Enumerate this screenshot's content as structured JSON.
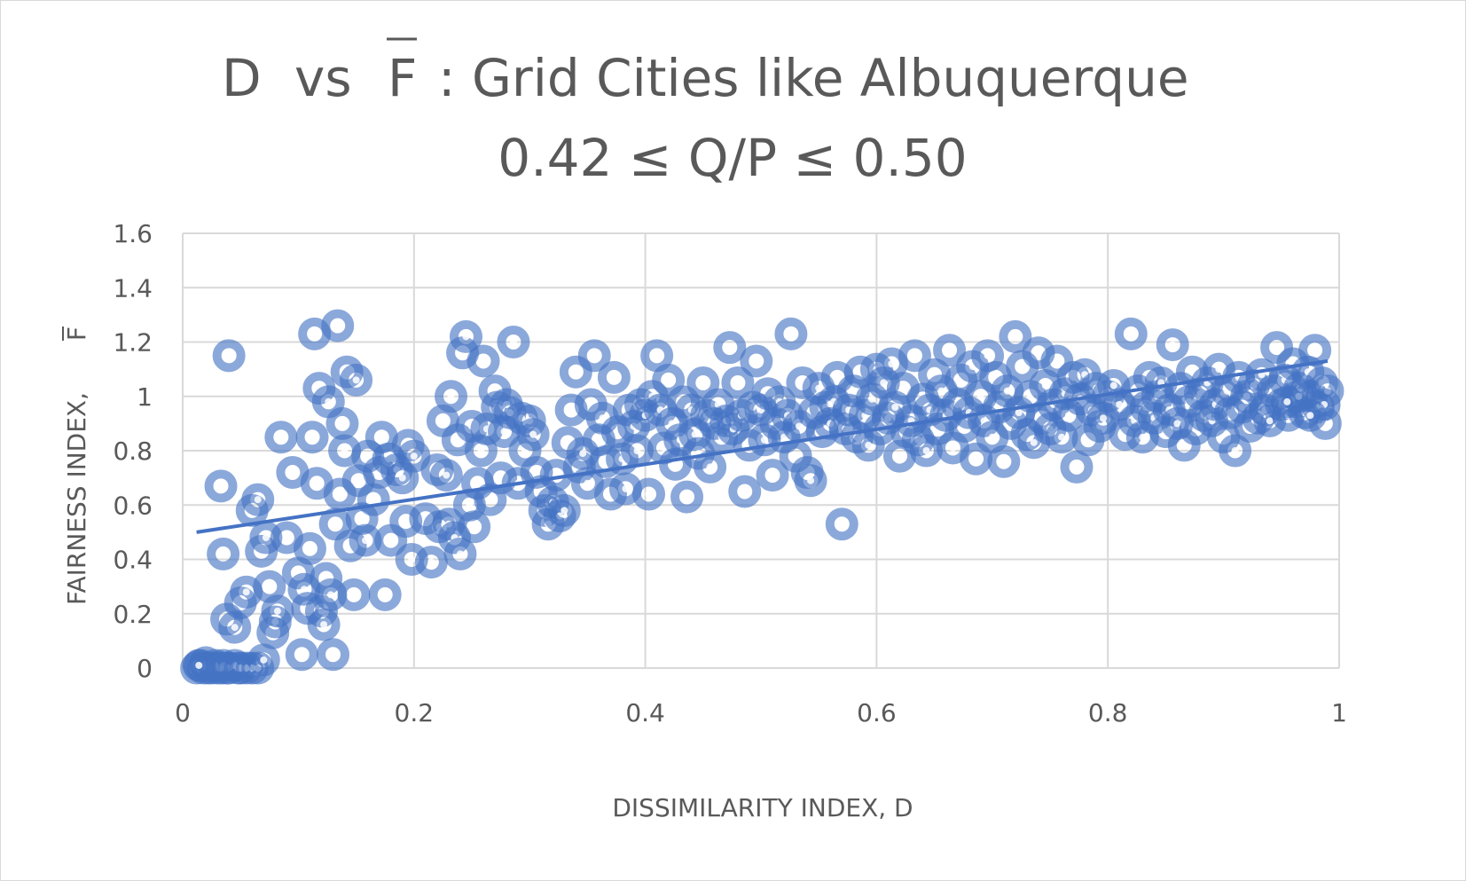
{
  "chart_data": {
    "type": "scatter",
    "title_line1_part1": "D",
    "title_line1_part2": "vs",
    "title_line1_part3": "F",
    "title_line1_part4": ": Grid Cities like Albuquerque",
    "title_line2": "0.42 ≤ Q/P ≤ 0.50",
    "xlabel": "DISSIMILARITY INDEX, D",
    "ylabel_prefix": "FAIRNESS INDEX,",
    "ylabel_symbol": "F",
    "xlim": [
      0,
      1
    ],
    "ylim": [
      0,
      1.6
    ],
    "x_ticks": [
      "0",
      "0.2",
      "0.4",
      "0.6",
      "0.8",
      "1"
    ],
    "x_tick_values": [
      0,
      0.2,
      0.4,
      0.6,
      0.8,
      1
    ],
    "y_ticks": [
      "0",
      "0.2",
      "0.4",
      "0.6",
      "0.8",
      "1",
      "1.2",
      "1.4",
      "1.6"
    ],
    "y_tick_values": [
      0,
      0.2,
      0.4,
      0.6,
      0.8,
      1.0,
      1.2,
      1.4,
      1.6
    ],
    "grid": true,
    "trendline": {
      "type": "linear",
      "x": [
        0.012,
        0.99
      ],
      "y": [
        0.5,
        1.13
      ]
    },
    "marker_color": "#4472C4",
    "trend_color": "#4472C4",
    "points": [
      [
        0.012,
        0.0
      ],
      [
        0.015,
        0.01
      ],
      [
        0.018,
        0.0
      ],
      [
        0.02,
        0.02
      ],
      [
        0.022,
        0.0
      ],
      [
        0.025,
        0.0
      ],
      [
        0.028,
        0.01
      ],
      [
        0.03,
        0.0
      ],
      [
        0.033,
        0.0
      ],
      [
        0.035,
        0.01
      ],
      [
        0.038,
        0.0
      ],
      [
        0.04,
        0.0
      ],
      [
        0.045,
        0.01
      ],
      [
        0.048,
        0.0
      ],
      [
        0.05,
        0.0
      ],
      [
        0.055,
        0.0
      ],
      [
        0.06,
        0.0
      ],
      [
        0.065,
        0.0
      ],
      [
        0.07,
        0.03
      ],
      [
        0.014,
        0.01
      ],
      [
        0.04,
        1.15
      ],
      [
        0.033,
        0.67
      ],
      [
        0.035,
        0.42
      ],
      [
        0.038,
        0.18
      ],
      [
        0.045,
        0.15
      ],
      [
        0.05,
        0.24
      ],
      [
        0.055,
        0.28
      ],
      [
        0.06,
        0.58
      ],
      [
        0.065,
        0.62
      ],
      [
        0.068,
        0.43
      ],
      [
        0.072,
        0.48
      ],
      [
        0.075,
        0.3
      ],
      [
        0.078,
        0.13
      ],
      [
        0.08,
        0.17
      ],
      [
        0.082,
        0.21
      ],
      [
        0.085,
        0.85
      ],
      [
        0.09,
        0.48
      ],
      [
        0.095,
        0.72
      ],
      [
        0.1,
        0.35
      ],
      [
        0.103,
        0.05
      ],
      [
        0.105,
        0.29
      ],
      [
        0.108,
        0.22
      ],
      [
        0.11,
        0.44
      ],
      [
        0.112,
        0.85
      ],
      [
        0.114,
        1.23
      ],
      [
        0.116,
        0.68
      ],
      [
        0.118,
        1.03
      ],
      [
        0.12,
        0.21
      ],
      [
        0.122,
        0.16
      ],
      [
        0.124,
        0.33
      ],
      [
        0.126,
        0.98
      ],
      [
        0.128,
        0.27
      ],
      [
        0.13,
        0.05
      ],
      [
        0.132,
        0.53
      ],
      [
        0.134,
        1.26
      ],
      [
        0.136,
        0.64
      ],
      [
        0.138,
        0.9
      ],
      [
        0.14,
        0.8
      ],
      [
        0.142,
        1.09
      ],
      [
        0.145,
        0.45
      ],
      [
        0.148,
        0.27
      ],
      [
        0.15,
        1.06
      ],
      [
        0.152,
        0.69
      ],
      [
        0.155,
        0.55
      ],
      [
        0.158,
        0.47
      ],
      [
        0.16,
        0.78
      ],
      [
        0.165,
        0.62
      ],
      [
        0.17,
        0.72
      ],
      [
        0.172,
        0.85
      ],
      [
        0.175,
        0.27
      ],
      [
        0.178,
        0.77
      ],
      [
        0.18,
        0.47
      ],
      [
        0.185,
        0.73
      ],
      [
        0.19,
        0.7
      ],
      [
        0.193,
        0.54
      ],
      [
        0.195,
        0.82
      ],
      [
        0.198,
        0.4
      ],
      [
        0.2,
        0.78
      ],
      [
        0.21,
        0.55
      ],
      [
        0.215,
        0.39
      ],
      [
        0.22,
        0.73
      ],
      [
        0.222,
        0.52
      ],
      [
        0.225,
        0.91
      ],
      [
        0.228,
        0.71
      ],
      [
        0.23,
        0.53
      ],
      [
        0.232,
        1.0
      ],
      [
        0.235,
        0.48
      ],
      [
        0.238,
        0.84
      ],
      [
        0.24,
        0.42
      ],
      [
        0.242,
        1.16
      ],
      [
        0.245,
        1.22
      ],
      [
        0.248,
        0.6
      ],
      [
        0.25,
        0.89
      ],
      [
        0.252,
        0.52
      ],
      [
        0.255,
        0.68
      ],
      [
        0.258,
        0.8
      ],
      [
        0.26,
        1.13
      ],
      [
        0.263,
        0.88
      ],
      [
        0.266,
        0.62
      ],
      [
        0.27,
        1.02
      ],
      [
        0.272,
        0.96
      ],
      [
        0.275,
        0.7
      ],
      [
        0.278,
        0.87
      ],
      [
        0.28,
        0.97
      ],
      [
        0.283,
        0.94
      ],
      [
        0.286,
        1.2
      ],
      [
        0.29,
        0.68
      ],
      [
        0.293,
        0.92
      ],
      [
        0.296,
        0.8
      ],
      [
        0.3,
        0.91
      ],
      [
        0.303,
        0.86
      ],
      [
        0.306,
        0.72
      ],
      [
        0.31,
        0.65
      ],
      [
        0.313,
        0.58
      ],
      [
        0.316,
        0.53
      ],
      [
        0.32,
        0.61
      ],
      [
        0.323,
        0.71
      ],
      [
        0.326,
        0.56
      ],
      [
        0.33,
        0.58
      ],
      [
        0.333,
        0.83
      ],
      [
        0.336,
        0.95
      ],
      [
        0.34,
        1.09
      ],
      [
        0.343,
        0.74
      ],
      [
        0.346,
        0.79
      ],
      [
        0.35,
        0.68
      ],
      [
        0.353,
        0.97
      ],
      [
        0.356,
        1.15
      ],
      [
        0.36,
        0.84
      ],
      [
        0.363,
        0.92
      ],
      [
        0.366,
        0.76
      ],
      [
        0.37,
        0.64
      ],
      [
        0.373,
        1.07
      ],
      [
        0.376,
        0.87
      ],
      [
        0.38,
        0.77
      ],
      [
        0.383,
        0.66
      ],
      [
        0.386,
        0.95
      ],
      [
        0.39,
        0.89
      ],
      [
        0.393,
        0.8
      ],
      [
        0.396,
        0.97
      ],
      [
        0.4,
        0.93
      ],
      [
        0.403,
        0.64
      ],
      [
        0.406,
        1.0
      ],
      [
        0.41,
        1.15
      ],
      [
        0.413,
        0.95
      ],
      [
        0.416,
        0.81
      ],
      [
        0.42,
        1.06
      ],
      [
        0.423,
        0.9
      ],
      [
        0.426,
        0.75
      ],
      [
        0.43,
        0.84
      ],
      [
        0.433,
        0.98
      ],
      [
        0.436,
        0.63
      ],
      [
        0.44,
        0.95
      ],
      [
        0.443,
        0.86
      ],
      [
        0.446,
        0.79
      ],
      [
        0.45,
        1.05
      ],
      [
        0.453,
        0.93
      ],
      [
        0.456,
        0.74
      ],
      [
        0.46,
        0.9
      ],
      [
        0.463,
        0.97
      ],
      [
        0.466,
        0.85
      ],
      [
        0.47,
        0.91
      ],
      [
        0.473,
        1.18
      ],
      [
        0.476,
        0.88
      ],
      [
        0.48,
        1.05
      ],
      [
        0.483,
        0.93
      ],
      [
        0.486,
        0.65
      ],
      [
        0.49,
        0.82
      ],
      [
        0.493,
        0.96
      ],
      [
        0.496,
        1.13
      ],
      [
        0.5,
        0.95
      ],
      [
        0.503,
        0.84
      ],
      [
        0.506,
        1.01
      ],
      [
        0.51,
        0.71
      ],
      [
        0.513,
        0.9
      ],
      [
        0.516,
        0.98
      ],
      [
        0.52,
        0.85
      ],
      [
        0.523,
        0.93
      ],
      [
        0.526,
        1.23
      ],
      [
        0.53,
        0.78
      ],
      [
        0.533,
        0.89
      ],
      [
        0.536,
        1.05
      ],
      [
        0.54,
        0.72
      ],
      [
        0.543,
        0.69
      ],
      [
        0.546,
        0.94
      ],
      [
        0.55,
        1.03
      ],
      [
        0.553,
        0.87
      ],
      [
        0.556,
        0.96
      ],
      [
        0.56,
        0.9
      ],
      [
        0.563,
        0.98
      ],
      [
        0.566,
        1.07
      ],
      [
        0.57,
        0.53
      ],
      [
        0.573,
        0.88
      ],
      [
        0.576,
        0.95
      ],
      [
        0.58,
        1.02
      ],
      [
        0.583,
        0.85
      ],
      [
        0.586,
        1.09
      ],
      [
        0.59,
        0.93
      ],
      [
        0.593,
        0.82
      ],
      [
        0.596,
        0.99
      ],
      [
        0.6,
        1.1
      ],
      [
        0.603,
        0.88
      ],
      [
        0.606,
        1.05
      ],
      [
        0.61,
        0.92
      ],
      [
        0.613,
        1.12
      ],
      [
        0.616,
        0.96
      ],
      [
        0.62,
        0.78
      ],
      [
        0.623,
        1.03
      ],
      [
        0.626,
        0.87
      ],
      [
        0.63,
        0.91
      ],
      [
        0.633,
        1.15
      ],
      [
        0.636,
        0.84
      ],
      [
        0.64,
        0.99
      ],
      [
        0.643,
        0.8
      ],
      [
        0.646,
        0.95
      ],
      [
        0.65,
        1.08
      ],
      [
        0.653,
        0.88
      ],
      [
        0.656,
        1.02
      ],
      [
        0.66,
        0.93
      ],
      [
        0.663,
        1.17
      ],
      [
        0.666,
        0.81
      ],
      [
        0.67,
        0.97
      ],
      [
        0.673,
        1.06
      ],
      [
        0.676,
        0.89
      ],
      [
        0.68,
        0.94
      ],
      [
        0.683,
        1.11
      ],
      [
        0.686,
        0.77
      ],
      [
        0.69,
        1.0
      ],
      [
        0.693,
        0.91
      ],
      [
        0.696,
        1.15
      ],
      [
        0.7,
        0.85
      ],
      [
        0.703,
        1.07
      ],
      [
        0.706,
        0.96
      ],
      [
        0.71,
        0.76
      ],
      [
        0.713,
        1.02
      ],
      [
        0.716,
        0.9
      ],
      [
        0.72,
        1.22
      ],
      [
        0.723,
        0.94
      ],
      [
        0.726,
        1.11
      ],
      [
        0.73,
        0.86
      ],
      [
        0.733,
        1.0
      ],
      [
        0.736,
        0.83
      ],
      [
        0.74,
        1.16
      ],
      [
        0.743,
        0.92
      ],
      [
        0.746,
        1.04
      ],
      [
        0.75,
        0.88
      ],
      [
        0.753,
        0.97
      ],
      [
        0.756,
        1.13
      ],
      [
        0.76,
        0.85
      ],
      [
        0.763,
        1.01
      ],
      [
        0.766,
        0.93
      ],
      [
        0.77,
        1.07
      ],
      [
        0.773,
        0.74
      ],
      [
        0.776,
        0.99
      ],
      [
        0.78,
        1.08
      ],
      [
        0.783,
        0.84
      ],
      [
        0.786,
        0.95
      ],
      [
        0.79,
        1.03
      ],
      [
        0.793,
        0.89
      ],
      [
        0.796,
        0.92
      ],
      [
        0.8,
        1.0
      ],
      [
        0.805,
        1.04
      ],
      [
        0.81,
        0.97
      ],
      [
        0.815,
        0.86
      ],
      [
        0.82,
        1.23
      ],
      [
        0.823,
        0.91
      ],
      [
        0.826,
        1.02
      ],
      [
        0.83,
        0.85
      ],
      [
        0.833,
        0.96
      ],
      [
        0.836,
        1.07
      ],
      [
        0.84,
        0.92
      ],
      [
        0.843,
        1.0
      ],
      [
        0.846,
        1.05
      ],
      [
        0.85,
        0.87
      ],
      [
        0.853,
        0.95
      ],
      [
        0.856,
        1.19
      ],
      [
        0.86,
        0.9
      ],
      [
        0.863,
        1.03
      ],
      [
        0.866,
        0.82
      ],
      [
        0.87,
        0.98
      ],
      [
        0.873,
        1.09
      ],
      [
        0.876,
        0.88
      ],
      [
        0.88,
        1.01
      ],
      [
        0.883,
        0.93
      ],
      [
        0.886,
        1.05
      ],
      [
        0.89,
        0.91
      ],
      [
        0.893,
        0.97
      ],
      [
        0.896,
        1.1
      ],
      [
        0.9,
        0.85
      ],
      [
        0.903,
        1.02
      ],
      [
        0.906,
        0.94
      ],
      [
        0.91,
        0.8
      ],
      [
        0.913,
        1.07
      ],
      [
        0.916,
        0.96
      ],
      [
        0.92,
        1.0
      ],
      [
        0.923,
        0.89
      ],
      [
        0.926,
        1.04
      ],
      [
        0.93,
        0.92
      ],
      [
        0.933,
        1.08
      ],
      [
        0.936,
        0.95
      ],
      [
        0.94,
        0.91
      ],
      [
        0.943,
        1.02
      ],
      [
        0.946,
        1.18
      ],
      [
        0.95,
        0.97
      ],
      [
        0.953,
        1.06
      ],
      [
        0.956,
        0.93
      ],
      [
        0.96,
        1.12
      ],
      [
        0.963,
        0.98
      ],
      [
        0.966,
        1.03
      ],
      [
        0.97,
        0.94
      ],
      [
        0.973,
        1.09
      ],
      [
        0.976,
        1.0
      ],
      [
        0.979,
        1.17
      ],
      [
        0.982,
        0.96
      ],
      [
        0.985,
        1.05
      ],
      [
        0.988,
        0.9
      ],
      [
        0.99,
        1.02
      ],
      [
        0.987,
        0.97
      ],
      [
        0.975,
        0.93
      ],
      [
        0.965,
        1.0
      ],
      [
        0.955,
        0.98
      ]
    ]
  }
}
